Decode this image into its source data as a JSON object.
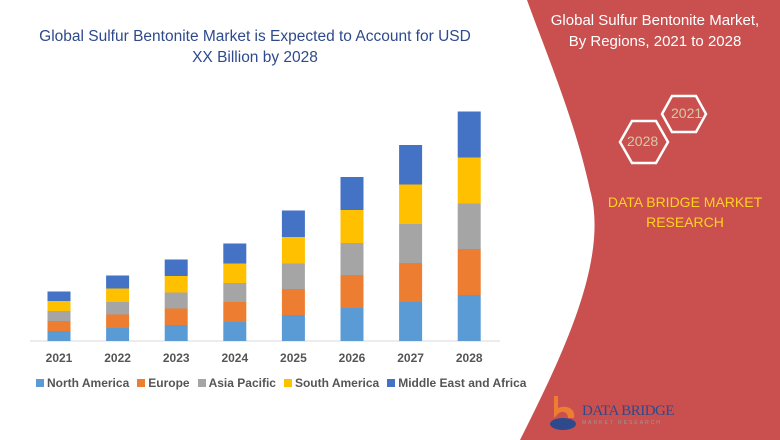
{
  "title": "Global Sulfur Bentonite Market is Expected to Account for USD XX Billion by 2028",
  "side_panel": {
    "title_line1": "Global Sulfur Bentonite Market,",
    "title_line2": "By Regions, 2021 to 2028",
    "hex_left": "2028",
    "hex_right": "2021",
    "research_line1": "DATA BRIDGE MARKET",
    "research_line2": "RESEARCH",
    "logo_text": "DATA BRIDGE",
    "logo_sub": "MARKET RESEARCH",
    "panel_color": "#c9504f"
  },
  "chart_data": {
    "type": "bar",
    "stacked": true,
    "title": "",
    "xlabel": "",
    "ylabel": "",
    "grid": false,
    "legend": "bottom",
    "categories": [
      "2021",
      "2022",
      "2023",
      "2024",
      "2025",
      "2026",
      "2027",
      "2028"
    ],
    "series": [
      {
        "name": "North America",
        "color": "#5b9bd5",
        "values": [
          10,
          13,
          16,
          19,
          26,
          33,
          39,
          46
        ]
      },
      {
        "name": "Europe",
        "color": "#ed7d31",
        "values": [
          10,
          13.5,
          16.5,
          20,
          26,
          33,
          39,
          46
        ]
      },
      {
        "name": "Asia Pacific",
        "color": "#a5a5a5",
        "values": [
          10,
          12.5,
          16,
          19,
          25.5,
          32,
          39,
          45.5
        ]
      },
      {
        "name": "South America",
        "color": "#ffc000",
        "values": [
          10,
          13.5,
          16.5,
          19.5,
          26.5,
          33,
          39.5,
          46
        ]
      },
      {
        "name": "Middle East and Africa",
        "color": "#4472c4",
        "values": [
          9.5,
          13,
          16.5,
          20,
          26.5,
          33,
          39.5,
          46
        ]
      }
    ]
  }
}
